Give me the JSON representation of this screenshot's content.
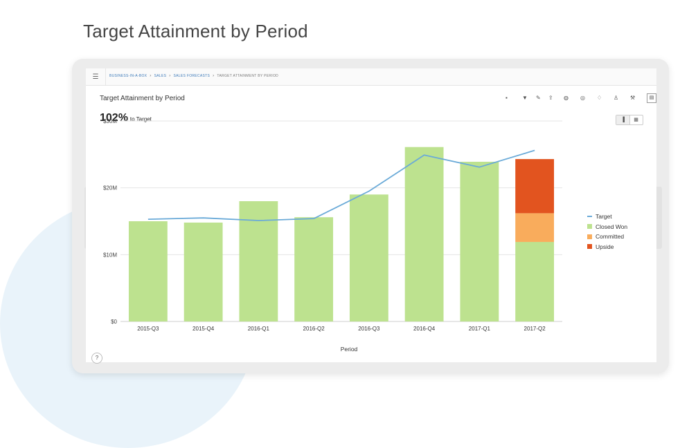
{
  "page": {
    "heading": "Target Attainment by Period"
  },
  "topbar": {
    "menu_icon": "hamburger-menu-icon",
    "breadcrumb": [
      "BUSINESS-IN-A-BOX",
      "SALES",
      "SALES FORECASTS",
      "TARGET ATTAINMENT BY PERIOD"
    ]
  },
  "report": {
    "title": "Target Attainment by Period",
    "kpi_value": "102%",
    "kpi_label": "to Target"
  },
  "toolbar": {
    "icons": [
      "comment-icon",
      "filter-icon",
      "edit-icon",
      "export-icon",
      "globe-icon",
      "target-icon",
      "bell-icon",
      "user-icon",
      "wrench-icon",
      "panel-icon"
    ]
  },
  "view_toggle": {
    "icons": [
      "bar-chart-icon",
      "table-icon"
    ]
  },
  "help": {
    "label": "?"
  },
  "colors": {
    "target": "#6aaad8",
    "closed_won": "#bde28f",
    "committed": "#f9ac5c",
    "upside": "#e2541f"
  },
  "chart_data": {
    "type": "bar",
    "stacked": true,
    "categories": [
      "2015-Q3",
      "2015-Q4",
      "2016-Q1",
      "2016-Q2",
      "2016-Q3",
      "2016-Q4",
      "2017-Q1",
      "2017-Q2"
    ],
    "series": [
      {
        "name": "Closed Won",
        "values": [
          15.0,
          14.8,
          18.0,
          15.6,
          19.0,
          26.1,
          23.9,
          11.9
        ]
      },
      {
        "name": "Committed",
        "values": [
          0,
          0,
          0,
          0,
          0,
          0,
          0,
          4.3
        ]
      },
      {
        "name": "Upside",
        "values": [
          0,
          0,
          0,
          0,
          0,
          0,
          0,
          8.1
        ]
      }
    ],
    "line_series": {
      "name": "Target",
      "values": [
        15.3,
        15.5,
        15.1,
        15.4,
        19.5,
        24.9,
        23.1,
        25.6
      ]
    },
    "xlabel": "Period",
    "ylabel": "",
    "ylim": [
      0,
      30
    ],
    "yticks": [
      0,
      10,
      20,
      30
    ],
    "ytick_labels": [
      "$0",
      "$10M",
      "$20M",
      "$30M"
    ],
    "grid": true,
    "legend_position": "right",
    "legend": [
      "Target",
      "Closed Won",
      "Committed",
      "Upside"
    ]
  }
}
